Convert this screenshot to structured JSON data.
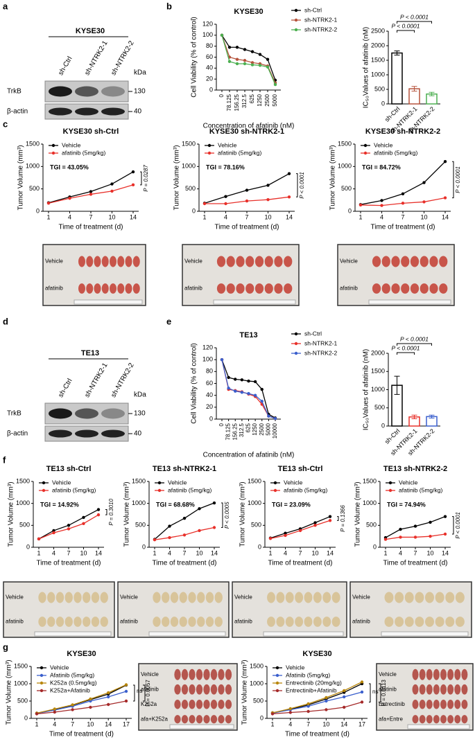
{
  "panels": [
    "a",
    "b",
    "c",
    "d",
    "e",
    "f",
    "g"
  ],
  "blots": [
    {
      "title": "KYSE30",
      "lanes": [
        "sh-Ctrl",
        "sh-NTRK2-1",
        "sh-NTRK2-2"
      ],
      "unit": "kDa",
      "rows": [
        "TrkB",
        "β-actin"
      ],
      "markers": [
        "130",
        "40"
      ]
    },
    {
      "title": "TE13",
      "lanes": [
        "sh-Ctrl",
        "sh-NTRK2-1",
        "sh-NTRK2-2"
      ],
      "unit": "kDa",
      "rows": [
        "TrkB",
        "β-actin"
      ],
      "markers": [
        "130",
        "40"
      ]
    }
  ],
  "photos": [
    {
      "rows": [
        "Vehicle",
        "afatinib"
      ]
    },
    {
      "rows": [
        "Vehicle",
        "afatinib"
      ]
    },
    {
      "rows": [
        "Vehicle",
        "afatinib"
      ]
    },
    {
      "rows": [
        "Vehicle",
        "afatinib"
      ]
    },
    {
      "rows": [
        "Vehicle",
        "afatinib"
      ]
    },
    {
      "rows": [
        "Vehicle",
        "afatinib"
      ]
    },
    {
      "rows": [
        "Vehicle",
        "afatinib"
      ]
    },
    {
      "rows": [
        "Vehicle",
        "afatinib",
        "K252a",
        "afa+K252a"
      ]
    },
    {
      "rows": [
        "Vehicle",
        "afatinib",
        "Entrectinib",
        "afa+Entre"
      ]
    }
  ],
  "chart_data": [
    {
      "type": "line",
      "title": "KYSE30",
      "xlabel": "Concentration of afatinib (nM)",
      "ylabel": "Cell Viability (% of control)",
      "legend": "right",
      "categories": [
        "0",
        "78.125",
        "156.25",
        "312.5",
        "625",
        "1250",
        "2500",
        "5000"
      ],
      "ylim": [
        0,
        120
      ],
      "yticks": [
        0,
        20,
        40,
        60,
        80,
        100,
        120
      ],
      "series": [
        {
          "name": "sh-Ctrl",
          "color": "#000000",
          "values": [
            100,
            78,
            78,
            74,
            70,
            65,
            56,
            18
          ]
        },
        {
          "name": "sh-NTRK2-1",
          "color": "#b5523b",
          "values": [
            100,
            60,
            56,
            54,
            50,
            48,
            44,
            13
          ]
        },
        {
          "name": "sh-NTRK2-2",
          "color": "#4caf50",
          "values": [
            100,
            52,
            48,
            48,
            46,
            45,
            42,
            10
          ]
        }
      ]
    },
    {
      "type": "bar",
      "ylabel": "IC₅₀Values of afatinib (nM)",
      "categories": [
        "sh-Ctrl",
        "sh-NTRK2-1",
        "sh-NTRK2-2"
      ],
      "values": [
        1750,
        520,
        340
      ],
      "errors": [
        70,
        80,
        60
      ],
      "colors": [
        "#000000",
        "#b5523b",
        "#4caf50"
      ],
      "ylim": [
        0,
        2500
      ],
      "yticks": [
        0,
        500,
        1000,
        1500,
        2000,
        2500
      ],
      "annotations": [
        "P < 0.0001",
        "P < 0.0001"
      ]
    },
    {
      "type": "line",
      "title": "KYSE30 sh-Ctrl",
      "xlabel": "Time of treatment (d)",
      "ylabel": "Tumor Volume (mm³)",
      "legend": "upper left",
      "categories": [
        "1",
        "4",
        "7",
        "10",
        "14"
      ],
      "ylim": [
        0,
        1500
      ],
      "yticks": [
        0,
        500,
        1000,
        1500
      ],
      "series": [
        {
          "name": "Vehicle",
          "color": "#000000",
          "values": [
            190,
            320,
            440,
            610,
            880
          ]
        },
        {
          "name": "afatinib (5mg/kg)",
          "color": "#e8302a",
          "values": [
            180,
            290,
            380,
            450,
            590
          ]
        }
      ],
      "annotations": [
        "TGI = 43.05%",
        "P = 0.0287"
      ]
    },
    {
      "type": "line",
      "title": "KYSE30 sh-NTRK2-1",
      "xlabel": "Time of treatment (d)",
      "ylabel": "Tumor Volume (mm³)",
      "legend": "upper left",
      "categories": [
        "1",
        "4",
        "7",
        "10",
        "14"
      ],
      "ylim": [
        0,
        1500
      ],
      "yticks": [
        0,
        500,
        1000,
        1500
      ],
      "series": [
        {
          "name": "Vehicle",
          "color": "#000000",
          "values": [
            180,
            330,
            470,
            580,
            840
          ]
        },
        {
          "name": "afatinib (5mg/kg)",
          "color": "#e8302a",
          "values": [
            170,
            170,
            230,
            260,
            320
          ]
        }
      ],
      "annotations": [
        "TGI = 78.16%",
        "P < 0.0001"
      ]
    },
    {
      "type": "line",
      "title": "KYSE30 sh-NTRK2-2",
      "xlabel": "Time of treatment (d)",
      "ylabel": "Tumor Volume (mm³)",
      "legend": "upper left",
      "categories": [
        "1",
        "4",
        "7",
        "10",
        "14"
      ],
      "ylim": [
        0,
        1500
      ],
      "yticks": [
        0,
        500,
        1000,
        1500
      ],
      "series": [
        {
          "name": "Vehicle",
          "color": "#000000",
          "values": [
            150,
            240,
            390,
            640,
            1110
          ]
        },
        {
          "name": "afatinib (5mg/kg)",
          "color": "#e8302a",
          "values": [
            140,
            130,
            180,
            210,
            300
          ]
        }
      ],
      "annotations": [
        "TGI = 84.72%",
        "P < 0.0001"
      ]
    },
    {
      "type": "line",
      "title": "TE13",
      "xlabel": "Concentration of afatinib (nM)",
      "ylabel": "Cell Viability (% of control)",
      "legend": "right",
      "categories": [
        "0",
        "78.125",
        "156.25",
        "312.5",
        "625",
        "1250",
        "2500",
        "5000",
        "10000"
      ],
      "ylim": [
        0,
        120
      ],
      "yticks": [
        0,
        20,
        40,
        60,
        80,
        100,
        120
      ],
      "series": [
        {
          "name": "sh-Ctrl",
          "color": "#000000",
          "values": [
            100,
            70,
            67,
            66,
            64,
            63,
            50,
            8,
            2
          ]
        },
        {
          "name": "sh-NTRK2-1",
          "color": "#e8302a",
          "values": [
            100,
            50,
            48,
            46,
            42,
            38,
            25,
            5,
            1
          ]
        },
        {
          "name": "sh-NTRK2-2",
          "color": "#3a5fcd",
          "values": [
            100,
            52,
            47,
            45,
            43,
            40,
            30,
            5,
            1
          ]
        }
      ]
    },
    {
      "type": "bar",
      "ylabel": "IC₅₀Values of afatinib (nM)",
      "categories": [
        "sh-Ctrl",
        "sh-NTRK2-1",
        "sh-NTRK2-2"
      ],
      "values": [
        1120,
        250,
        260
      ],
      "errors": [
        250,
        50,
        40
      ],
      "colors": [
        "#000000",
        "#e8302a",
        "#3a5fcd"
      ],
      "ylim": [
        0,
        2000
      ],
      "yticks": [
        0,
        500,
        1000,
        1500,
        2000
      ],
      "annotations": [
        "P < 0.0001",
        "P < 0.0001"
      ]
    },
    {
      "type": "line",
      "title": "TE13 sh-Ctrl",
      "xlabel": "Time of treatment (d)",
      "ylabel": "Tumor Volume (mm³)",
      "legend": "upper left",
      "categories": [
        "1",
        "4",
        "7",
        "10",
        "14"
      ],
      "ylim": [
        0,
        1500
      ],
      "yticks": [
        0,
        500,
        1000,
        1500
      ],
      "series": [
        {
          "name": "Vehicle",
          "color": "#000000",
          "values": [
            190,
            380,
            500,
            680,
            860
          ]
        },
        {
          "name": "afatinib (5mg/kg)",
          "color": "#e8302a",
          "values": [
            190,
            330,
            420,
            540,
            740
          ]
        }
      ],
      "annotations": [
        "TGI = 14.92%",
        "P = 0.3010"
      ]
    },
    {
      "type": "line",
      "title": "TE13 sh-NTRK2-1",
      "xlabel": "Time of treatment (d)",
      "ylabel": "Tumor Volume (mm³)",
      "legend": "upper left",
      "categories": [
        "1",
        "4",
        "7",
        "10",
        "14"
      ],
      "ylim": [
        0,
        1500
      ],
      "yticks": [
        0,
        500,
        1000,
        1500
      ],
      "series": [
        {
          "name": "Vehicle",
          "color": "#000000",
          "values": [
            180,
            480,
            660,
            880,
            1010
          ]
        },
        {
          "name": "afatinib (5mg/kg)",
          "color": "#e8302a",
          "values": [
            170,
            220,
            280,
            380,
            450
          ]
        }
      ],
      "annotations": [
        "TGI = 68.68%",
        "P < 0.0005"
      ]
    },
    {
      "type": "line",
      "title": "TE13 sh-Ctrl",
      "xlabel": "Time of treatment (d)",
      "ylabel": "Tumor Volume (mm³)",
      "legend": "upper left",
      "categories": [
        "1",
        "4",
        "7",
        "10",
        "14"
      ],
      "ylim": [
        0,
        1500
      ],
      "yticks": [
        0,
        500,
        1000,
        1500
      ],
      "series": [
        {
          "name": "Vehicle",
          "color": "#000000",
          "values": [
            210,
            320,
            420,
            560,
            700
          ]
        },
        {
          "name": "afatinib (5mg/kg)",
          "color": "#e8302a",
          "values": [
            200,
            270,
            380,
            500,
            610
          ]
        }
      ],
      "annotations": [
        "TGI = 23.09%",
        "P = 0.1366"
      ]
    },
    {
      "type": "line",
      "title": "TE13 sh-NTRK2-2",
      "xlabel": "Time of treatment (d)",
      "ylabel": "Tumor Volume (mm³)",
      "legend": "upper left",
      "categories": [
        "1",
        "4",
        "7",
        "10",
        "14"
      ],
      "ylim": [
        0,
        1500
      ],
      "yticks": [
        0,
        500,
        1000,
        1500
      ],
      "series": [
        {
          "name": "Vehicle",
          "color": "#000000",
          "values": [
            220,
            410,
            480,
            570,
            700
          ]
        },
        {
          "name": "afatinib (5mg/kg)",
          "color": "#e8302a",
          "values": [
            180,
            230,
            230,
            250,
            300
          ]
        }
      ],
      "annotations": [
        "TGI = 74.94%",
        "P < 0.0001"
      ]
    },
    {
      "type": "line",
      "title": "KYSE30",
      "xlabel": "Time of treatment (d)",
      "ylabel": "Tumor Volume (mm³)",
      "legend": "upper left",
      "categories": [
        "1",
        "4",
        "7",
        "10",
        "14",
        "17"
      ],
      "ylim": [
        0,
        1500
      ],
      "yticks": [
        0,
        500,
        1000,
        1500
      ],
      "series": [
        {
          "name": "Vehicle",
          "color": "#000000",
          "values": [
            150,
            260,
            380,
            540,
            700,
            960
          ]
        },
        {
          "name": "Afatinib (5mg/kg)",
          "color": "#3a5fcd",
          "values": [
            140,
            240,
            350,
            500,
            620,
            780
          ]
        },
        {
          "name": "K252a (0.5mg/kg)",
          "color": "#b8860b",
          "values": [
            150,
            270,
            390,
            560,
            740,
            970
          ]
        },
        {
          "name": "K252a+Afatinib",
          "color": "#a52a2a",
          "values": [
            130,
            180,
            250,
            320,
            400,
            500
          ]
        }
      ],
      "annotations": [
        "ns",
        "P = 0.0057"
      ]
    },
    {
      "type": "line",
      "title": "KYSE30",
      "xlabel": "Time of treatment (d)",
      "ylabel": "Tumor Volume (mm³)",
      "legend": "upper left",
      "categories": [
        "1",
        "4",
        "7",
        "10",
        "14",
        "17"
      ],
      "ylim": [
        0,
        1500
      ],
      "yticks": [
        0,
        500,
        1000,
        1500
      ],
      "series": [
        {
          "name": "Vehicle",
          "color": "#000000",
          "values": [
            160,
            260,
            390,
            560,
            750,
            1000
          ]
        },
        {
          "name": "Afatinib (5mg/kg)",
          "color": "#3a5fcd",
          "values": [
            150,
            250,
            350,
            500,
            620,
            760
          ]
        },
        {
          "name": "Entrectinib (20mg/kg)",
          "color": "#b8860b",
          "values": [
            160,
            280,
            420,
            600,
            800,
            1050
          ]
        },
        {
          "name": "Entrectinib+Afatinib",
          "color": "#a52a2a",
          "values": [
            130,
            170,
            200,
            250,
            320,
            470
          ]
        }
      ],
      "annotations": [
        "ns",
        "P = 0.0113"
      ]
    }
  ]
}
